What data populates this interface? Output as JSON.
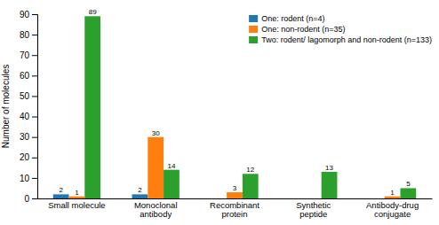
{
  "chart_data": {
    "type": "bar",
    "categories": [
      "Small molecule",
      "Monoclonal\nantibody",
      "Recombinant\nprotein",
      "Synthetic\npeptide",
      "Antibody-drug\nconjugate"
    ],
    "series": [
      {
        "name": "One: rodent (n=4)",
        "values": [
          2,
          2,
          0,
          0,
          0
        ]
      },
      {
        "name": "One: non-rodent (n=35)",
        "values": [
          1,
          30,
          3,
          0,
          1
        ]
      },
      {
        "name": "Two: rodent/ lagomorph and non-rodent (n=133)",
        "values": [
          89,
          14,
          12,
          13,
          5
        ]
      }
    ],
    "y_label": "Number of molecules",
    "ylim": [
      0,
      90
    ],
    "yticks": [
      0,
      10,
      20,
      30,
      40,
      50,
      60,
      70,
      80,
      90
    ],
    "data_labels": true,
    "legend": "upper right"
  }
}
